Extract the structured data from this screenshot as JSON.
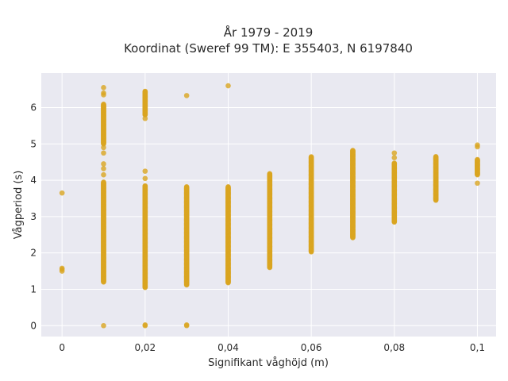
{
  "chart_data": {
    "type": "scatter",
    "title": "År 1979 - 2019",
    "subtitle": "Koordinat (Sweref 99 TM): E 355403, N 6197840",
    "xlabel": "Signifikant våghöjd (m)",
    "ylabel": "Vågperiod (s)",
    "xlim": [
      -0.005,
      0.1045
    ],
    "ylim": [
      -0.3,
      6.95
    ],
    "x_ticks": [
      0,
      0.02,
      0.04,
      0.06,
      0.08,
      0.1
    ],
    "x_tick_labels": [
      "0",
      "0,02",
      "0,04",
      "0,06",
      "0,08",
      "0,1"
    ],
    "y_ticks": [
      0,
      1,
      2,
      3,
      4,
      5,
      6
    ],
    "y_tick_labels": [
      "0",
      "1",
      "2",
      "3",
      "4",
      "5",
      "6"
    ],
    "grid": true,
    "background_color": "#e9e9f1",
    "marker_color": "#daa520",
    "groups": [
      {
        "x": 0.0,
        "ranges": [],
        "points": [
          1.5,
          1.55,
          1.58,
          3.65
        ]
      },
      {
        "x": 0.01,
        "ranges": [
          [
            1.2,
            3.95
          ],
          [
            5.0,
            6.1
          ]
        ],
        "points": [
          0.0,
          4.15,
          4.32,
          4.45,
          4.75,
          4.9,
          6.35,
          6.4,
          6.55
        ]
      },
      {
        "x": 0.02,
        "ranges": [
          [
            1.05,
            3.85
          ],
          [
            5.8,
            6.45
          ]
        ],
        "points": [
          0.0,
          0.02,
          4.05,
          4.25,
          5.7
        ]
      },
      {
        "x": 0.03,
        "ranges": [
          [
            1.12,
            3.82
          ]
        ],
        "points": [
          0.0,
          0.02,
          6.33
        ]
      },
      {
        "x": 0.04,
        "ranges": [
          [
            1.18,
            3.82
          ]
        ],
        "points": [
          6.6
        ]
      },
      {
        "x": 0.05,
        "ranges": [
          [
            1.6,
            4.18
          ]
        ],
        "points": []
      },
      {
        "x": 0.06,
        "ranges": [
          [
            2.03,
            4.65
          ]
        ],
        "points": []
      },
      {
        "x": 0.07,
        "ranges": [
          [
            2.42,
            4.82
          ]
        ],
        "points": []
      },
      {
        "x": 0.08,
        "ranges": [
          [
            2.85,
            4.48
          ]
        ],
        "points": [
          4.62,
          4.75
        ]
      },
      {
        "x": 0.09,
        "ranges": [
          [
            3.45,
            4.65
          ]
        ],
        "points": []
      },
      {
        "x": 0.1,
        "ranges": [
          [
            4.15,
            4.58
          ]
        ],
        "points": [
          3.92,
          4.92,
          4.97
        ]
      }
    ]
  }
}
